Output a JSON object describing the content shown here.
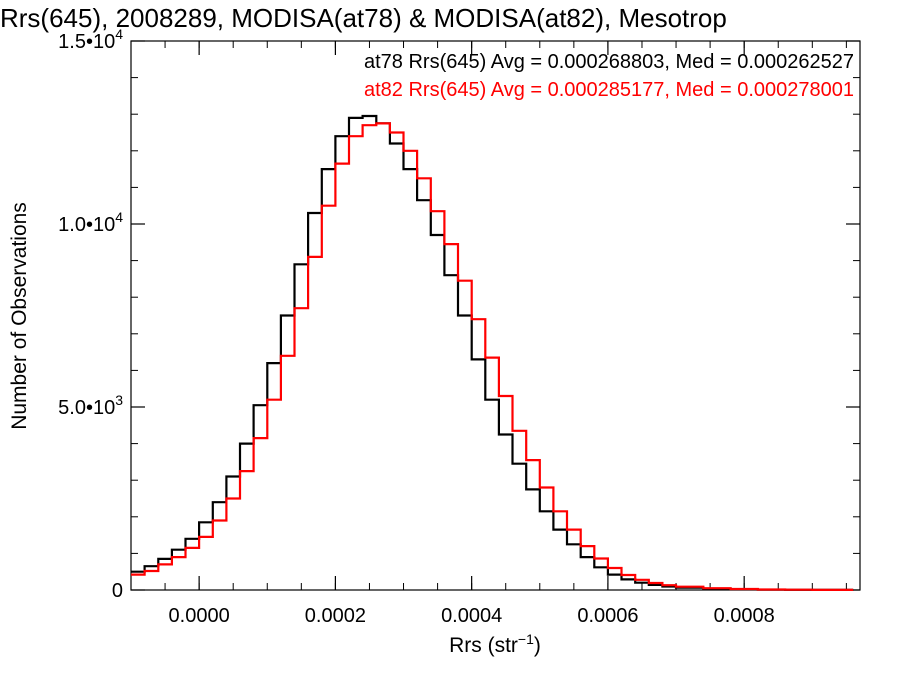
{
  "chart_data": {
    "type": "step-histogram",
    "title": "Rrs(645), 2008289, MODISA(at78) & MODISA(at82), Mesotrop",
    "xlabel_base": "Rrs (str",
    "xlabel_exp": "−1",
    "xlabel_close": ")",
    "ylabel": "Number of Observations",
    "xlim": [
      -0.0001,
      0.00097
    ],
    "ylim": [
      0,
      15000
    ],
    "x_ticks": [
      {
        "value": 0.0,
        "label": "0.0000"
      },
      {
        "value": 0.0002,
        "label": "0.0002"
      },
      {
        "value": 0.0004,
        "label": "0.0004"
      },
      {
        "value": 0.0006,
        "label": "0.0006"
      },
      {
        "value": 0.0008,
        "label": "0.0008"
      }
    ],
    "y_ticks": [
      {
        "value": 0,
        "mant": "0",
        "exp": ""
      },
      {
        "value": 5000,
        "mant": "5.0•10",
        "exp": "3"
      },
      {
        "value": 10000,
        "mant": "1.0•10",
        "exp": "4"
      },
      {
        "value": 15000,
        "mant": "1.5•10",
        "exp": "4"
      }
    ],
    "legend_position": "top-right",
    "annotations": [
      {
        "text": "at78 Rrs(645) Avg = 0.000268803, Med = 0.000262527",
        "color": "#000000"
      },
      {
        "text": "at82 Rrs(645) Avg = 0.000285177, Med = 0.000278001",
        "color": "#ff0000"
      }
    ],
    "series": [
      {
        "color": "#000000",
        "x": [
          -0.0001,
          -8e-05,
          -6e-05,
          -4e-05,
          -2e-05,
          0.0,
          2e-05,
          4e-05,
          6e-05,
          8e-05,
          0.0001,
          0.00012,
          0.00014,
          0.00016,
          0.00018,
          0.0002,
          0.00022,
          0.00024,
          0.00026,
          0.00028,
          0.0003,
          0.00032,
          0.00034,
          0.00036,
          0.00038,
          0.0004,
          0.00042,
          0.00044,
          0.00046,
          0.00048,
          0.0005,
          0.00052,
          0.00054,
          0.00056,
          0.00058,
          0.0006,
          0.00062,
          0.00064,
          0.00066,
          0.00068,
          0.0007,
          0.00074,
          0.00078,
          0.00082,
          0.00086,
          0.0009,
          0.00096
        ],
        "y": [
          500,
          650,
          850,
          1100,
          1400,
          1850,
          2400,
          3100,
          4000,
          5050,
          6200,
          7500,
          8900,
          10300,
          11500,
          12400,
          12900,
          12950,
          12750,
          12200,
          11500,
          10650,
          9700,
          8600,
          7500,
          6300,
          5200,
          4250,
          3450,
          2750,
          2150,
          1650,
          1250,
          900,
          620,
          420,
          290,
          200,
          140,
          95,
          65,
          35,
          20,
          10,
          6,
          3,
          0
        ]
      },
      {
        "color": "#ff0000",
        "x": [
          -0.0001,
          -8e-05,
          -6e-05,
          -4e-05,
          -2e-05,
          0.0,
          2e-05,
          4e-05,
          6e-05,
          8e-05,
          0.0001,
          0.00012,
          0.00014,
          0.00016,
          0.00018,
          0.0002,
          0.00022,
          0.00024,
          0.00026,
          0.00028,
          0.0003,
          0.00032,
          0.00034,
          0.00036,
          0.00038,
          0.0004,
          0.00042,
          0.00044,
          0.00046,
          0.00048,
          0.0005,
          0.00052,
          0.00054,
          0.00056,
          0.00058,
          0.0006,
          0.00062,
          0.00064,
          0.00066,
          0.00068,
          0.0007,
          0.00074,
          0.00078,
          0.00082,
          0.00086,
          0.0009,
          0.00096
        ],
        "y": [
          420,
          520,
          700,
          900,
          1150,
          1450,
          1900,
          2500,
          3250,
          4150,
          5200,
          6400,
          7700,
          9100,
          10500,
          11650,
          12400,
          12700,
          12750,
          12500,
          12000,
          11250,
          10350,
          9450,
          8450,
          7400,
          6350,
          5300,
          4350,
          3550,
          2800,
          2150,
          1650,
          1200,
          860,
          600,
          410,
          280,
          190,
          130,
          90,
          50,
          28,
          15,
          8,
          4,
          0
        ]
      }
    ]
  }
}
